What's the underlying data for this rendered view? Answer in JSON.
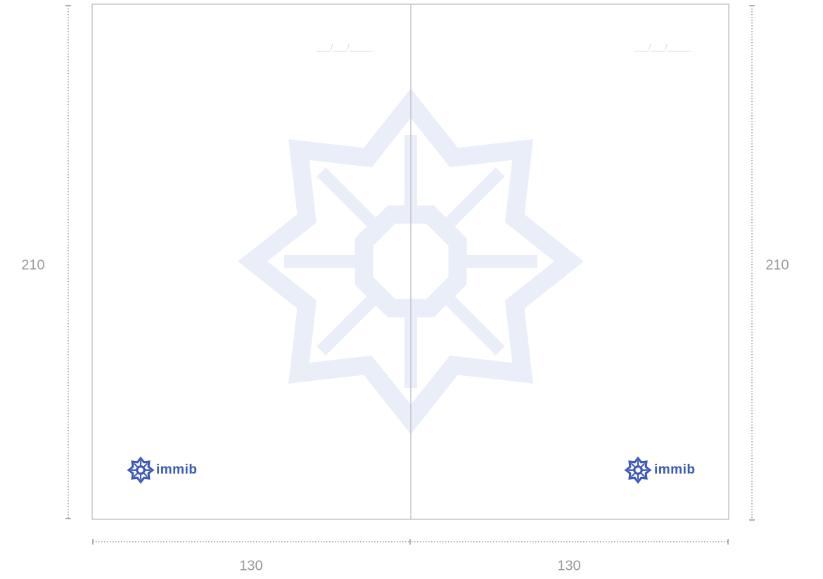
{
  "dimensions": {
    "left_height": 210,
    "right_height": 210,
    "left_width": 130,
    "right_width": 130
  },
  "pages": [
    {
      "date": "___/___/_____",
      "logo": "immib"
    },
    {
      "date": "___/___/_____",
      "logo": "immib"
    }
  ]
}
